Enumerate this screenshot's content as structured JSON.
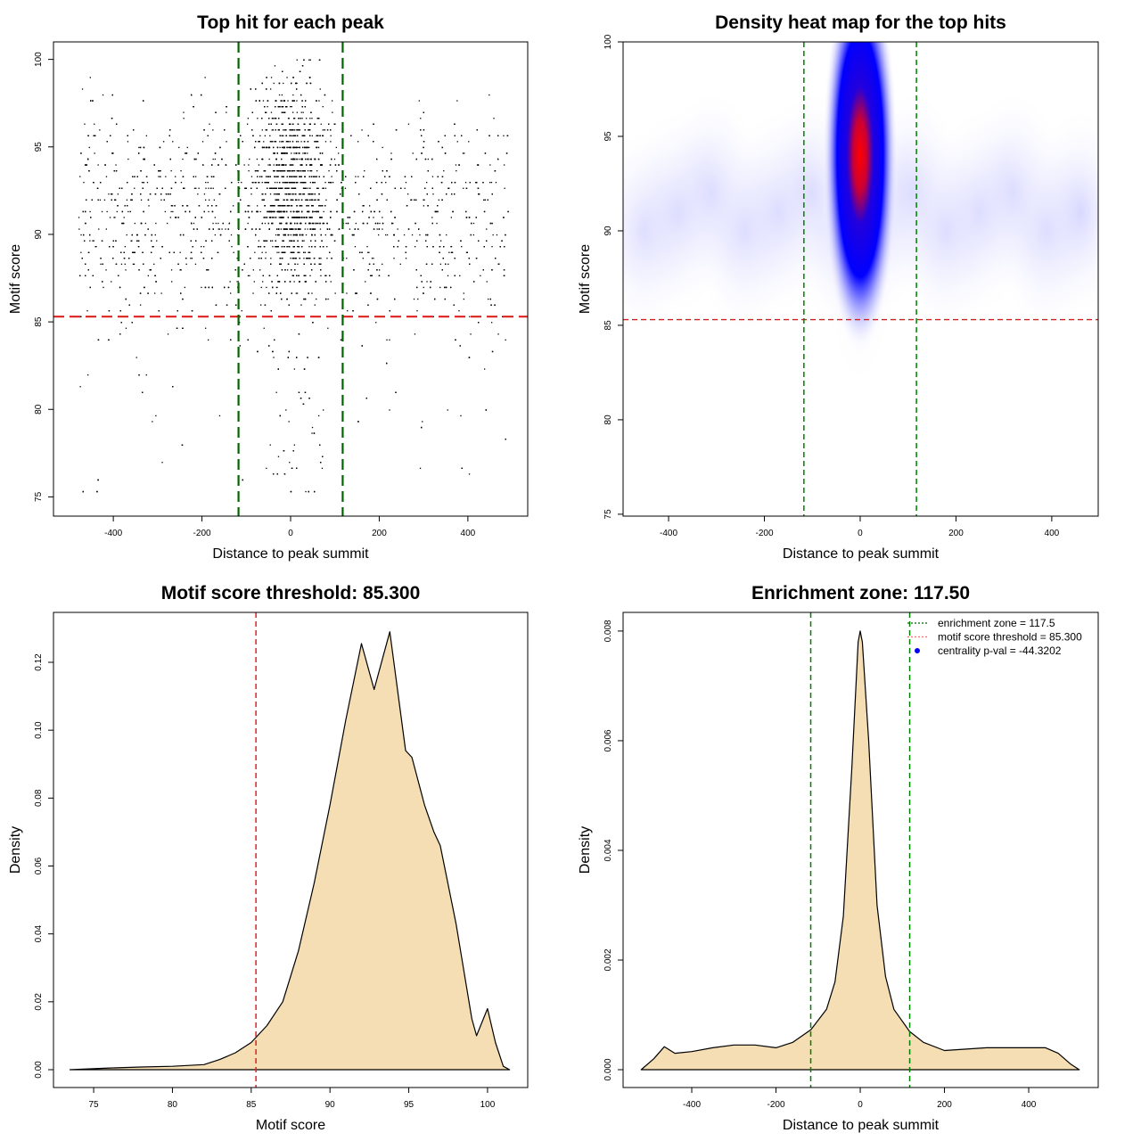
{
  "chart_data": [
    {
      "type": "scatter",
      "title": "Top hit for each peak",
      "xlabel": "Distance to peak summit",
      "ylabel": "Motif score",
      "xlim": [
        -535,
        535
      ],
      "ylim": [
        73.9,
        101
      ],
      "xticks": [
        -400,
        -200,
        0,
        200,
        400
      ],
      "yticks": [
        75,
        80,
        85,
        90,
        95,
        100
      ],
      "hlines": [
        {
          "y": 85.3,
          "color": "#dd2222",
          "style": "dashed"
        }
      ],
      "vlines": [
        {
          "x": -117.5,
          "color": "#006400",
          "style": "dashed"
        },
        {
          "x": 117.5,
          "color": "#006400",
          "style": "dashed"
        }
      ],
      "point_color": "#000000"
    },
    {
      "type": "heatmap",
      "title": "Density heat map for the top hits",
      "xlabel": "Distance to peak summit",
      "ylabel": "Motif score",
      "xlim": [
        -495,
        497
      ],
      "ylim": [
        74.9,
        100
      ],
      "xticks": [
        -400,
        -200,
        0,
        200,
        400
      ],
      "yticks": [
        75,
        80,
        85,
        90,
        95,
        100
      ],
      "peak": {
        "x": 0,
        "y": 94
      },
      "colors": [
        "#ffffff",
        "#0000ff",
        "#ff0000"
      ],
      "hlines": [
        {
          "y": 85.3,
          "color": "#cc2222",
          "style": "dashed"
        }
      ],
      "vlines": [
        {
          "x": -117.5,
          "color": "#008000",
          "style": "dashed"
        },
        {
          "x": 117.5,
          "color": "#008000",
          "style": "dashed"
        }
      ]
    },
    {
      "type": "area",
      "title": "Motif score threshold: 85.300",
      "xlabel": "Motif score",
      "ylabel": "Density",
      "xlim": [
        72.45,
        102.55
      ],
      "ylim": [
        -0.00525,
        0.1347
      ],
      "xticks": [
        75,
        80,
        85,
        90,
        95,
        100
      ],
      "yticks": [
        0.0,
        0.02,
        0.04,
        0.06,
        0.08,
        0.1,
        0.12
      ],
      "ytick_labels": [
        "0.00",
        "0.02",
        "0.04",
        "0.06",
        "0.08",
        "0.10",
        "0.12"
      ],
      "fill": "#f5deb3",
      "x": [
        73.5,
        76,
        78,
        80,
        82,
        83,
        84,
        85,
        86,
        87,
        88,
        89,
        90,
        91,
        92,
        92.8,
        93.8,
        94.8,
        95.2,
        96,
        96.6,
        97,
        98,
        99,
        99.3,
        100,
        100.5,
        101,
        101.4
      ],
      "y": [
        0,
        0.0005,
        0.0008,
        0.001,
        0.0015,
        0.003,
        0.005,
        0.008,
        0.013,
        0.02,
        0.035,
        0.055,
        0.078,
        0.103,
        0.1255,
        0.112,
        0.129,
        0.094,
        0.092,
        0.078,
        0.07,
        0.066,
        0.043,
        0.015,
        0.01,
        0.018,
        0.008,
        0.001,
        0
      ],
      "vlines": [
        {
          "x": 85.3,
          "color": "#dd2222",
          "style": "dashed"
        }
      ]
    },
    {
      "type": "area",
      "title": "Enrichment zone: 117.50",
      "xlabel": "Distance to peak summit",
      "ylabel": "Density",
      "xlim": [
        -563,
        565
      ],
      "ylim": [
        -0.000325,
        0.00834
      ],
      "xticks": [
        -400,
        -200,
        0,
        200,
        400
      ],
      "yticks": [
        0,
        0.002,
        0.004,
        0.006,
        0.008
      ],
      "ytick_labels": [
        "0.000",
        "0.002",
        "0.004",
        "0.006",
        "0.008"
      ],
      "fill": "#f5deb3",
      "x": [
        -520,
        -490,
        -465,
        -440,
        -400,
        -350,
        -300,
        -250,
        -200,
        -160,
        -117,
        -80,
        -60,
        -40,
        -20,
        -5,
        0,
        5,
        20,
        40,
        60,
        80,
        117,
        150,
        200,
        300,
        400,
        440,
        470,
        500,
        520
      ],
      "y": [
        0,
        0.0002,
        0.00042,
        0.0003,
        0.00033,
        0.0004,
        0.00045,
        0.00045,
        0.0004,
        0.0005,
        0.00073,
        0.0011,
        0.0016,
        0.0028,
        0.0055,
        0.0078,
        0.008,
        0.0078,
        0.006,
        0.003,
        0.0017,
        0.0011,
        0.0007,
        0.0005,
        0.00035,
        0.0004,
        0.0004,
        0.0004,
        0.0003,
        0.0001,
        0
      ],
      "vlines": [
        {
          "x": -117.5,
          "color": "#008000",
          "style": "dashed"
        },
        {
          "x": 117.5,
          "color": "#008000",
          "style": "dashed"
        }
      ],
      "legend": {
        "position": "top-right",
        "entries": [
          {
            "label": "enrichment zone = 117.5",
            "color": "#006400",
            "marker": "dotted-line"
          },
          {
            "label": "motif score threshold = 85.300",
            "color": "#ff6666",
            "marker": "dotted-line"
          },
          {
            "label": "centrality p-val = -44.3202",
            "color": "#0000ff",
            "marker": "dot"
          }
        ]
      }
    }
  ]
}
